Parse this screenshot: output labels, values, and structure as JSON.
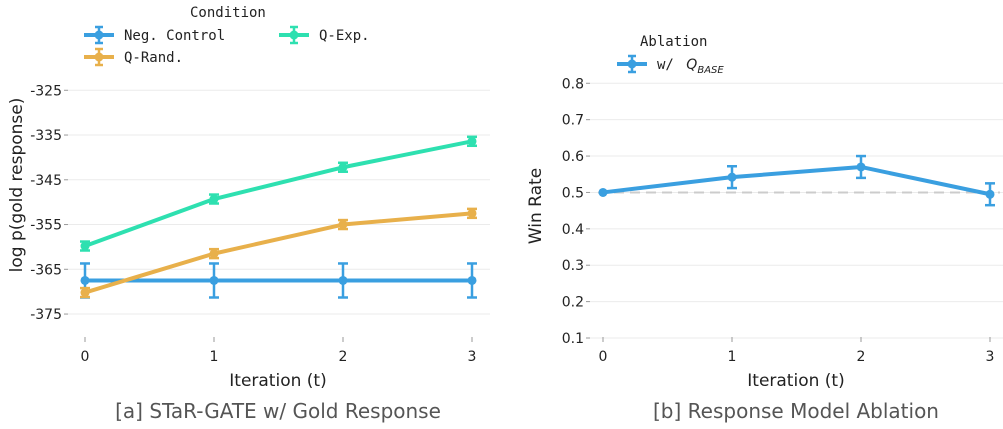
{
  "chart_data": [
    {
      "type": "line",
      "caption": "[a] STaR-GATE w/ Gold Response",
      "xlabel": "Iteration (t)",
      "ylabel": "log p(gold response)",
      "x": [
        0,
        1,
        2,
        3
      ],
      "xlim": [
        0,
        3
      ],
      "ylim": [
        -377,
        -316
      ],
      "yticks": [
        -375,
        -365,
        -355,
        -345,
        -335,
        -325
      ],
      "yticklabels": [
        "-375",
        "-365",
        "-355",
        "-345",
        "-335",
        "-325"
      ],
      "legend_title": "Condition",
      "legend_position": "top-left",
      "series": [
        {
          "name": "Neg. Control",
          "color": "#3a9fe0",
          "values": [
            -367.5,
            -367.5,
            -367.5,
            -367.5
          ],
          "err": [
            3.8,
            3.8,
            3.8,
            3.8
          ]
        },
        {
          "name": "Q-Rand.",
          "color": "#e8b04b",
          "values": [
            -370.2,
            -361.5,
            -355.0,
            -352.5
          ],
          "err": [
            1.0,
            1.0,
            1.0,
            1.0
          ]
        },
        {
          "name": "Q-Exp.",
          "color": "#2ee0b0",
          "values": [
            -359.8,
            -349.3,
            -342.2,
            -336.4
          ],
          "err": [
            1.0,
            1.0,
            1.0,
            1.0
          ]
        }
      ]
    },
    {
      "type": "line",
      "caption": "[b] Response Model Ablation",
      "xlabel": "Iteration (t)",
      "ylabel": "Win Rate",
      "x": [
        0,
        1,
        2,
        3
      ],
      "xlim": [
        0,
        3
      ],
      "ylim": [
        0.1,
        0.82
      ],
      "yticks": [
        0.1,
        0.2,
        0.3,
        0.4,
        0.5,
        0.6,
        0.7,
        0.8
      ],
      "yticklabels": [
        "0.1",
        "0.2",
        "0.3",
        "0.4",
        "0.5",
        "0.6",
        "0.7",
        "0.8"
      ],
      "reference_line": 0.5,
      "legend_title": "Ablation",
      "legend_position": "top-left",
      "series": [
        {
          "name_prefix": "w/ ",
          "name_sym": "Q",
          "name_sub": "BASE",
          "color": "#3a9fe0",
          "values": [
            0.5,
            0.542,
            0.57,
            0.495
          ],
          "err": [
            0.0,
            0.03,
            0.03,
            0.03
          ]
        }
      ]
    }
  ]
}
